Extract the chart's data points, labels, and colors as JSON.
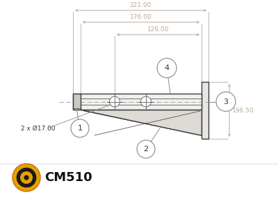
{
  "bg_color": "#ffffff",
  "line_color": "#3a3a3a",
  "line_color_light": "#666666",
  "dim_color": "#b8a898",
  "dim_text_color": "#b8a898",
  "text_color": "#333333",
  "fill_arm": "#f2f0ee",
  "fill_plate": "#e8e6e2",
  "fill_gusset": "#dedad6",
  "fill_cap": "#ccc8c4",
  "fill_hole": "#ffffff",
  "callout_fill": "#ffffff",
  "callout_edge": "#888888",
  "dim_221": "221.00",
  "dim_176": "176.00",
  "dim_126": "126.00",
  "dim_196": "196.50",
  "dim_holes": "2 x Ø17.00",
  "logo_gold": "#e8a000",
  "logo_dark": "#c07000",
  "logo_black": "#1a1a1a"
}
